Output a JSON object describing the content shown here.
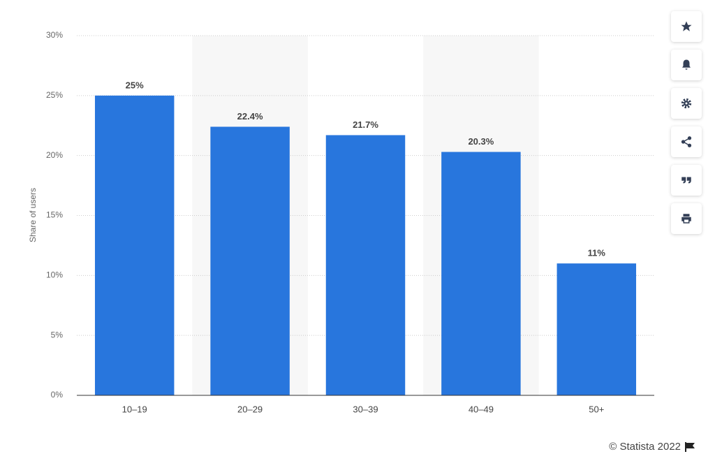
{
  "chart_data": {
    "type": "bar",
    "ylabel": "Share of users",
    "categories": [
      "10–19",
      "20–29",
      "30–39",
      "40–49",
      "50+"
    ],
    "values": [
      25,
      22.4,
      21.7,
      20.3,
      11
    ],
    "value_labels": [
      "25%",
      "22.4%",
      "21.7%",
      "20.3%",
      "11%"
    ],
    "color": "#2876dd",
    "ylim": [
      0,
      30
    ],
    "yticks": [
      {
        "value": 0,
        "label": "0%"
      },
      {
        "value": 5,
        "label": "5%"
      },
      {
        "value": 10,
        "label": "10%"
      },
      {
        "value": 15,
        "label": "15%"
      },
      {
        "value": 20,
        "label": "20%"
      },
      {
        "value": 25,
        "label": "25%"
      },
      {
        "value": 30,
        "label": "30%"
      }
    ],
    "grid": true,
    "source": "© Statista 2022"
  }
}
